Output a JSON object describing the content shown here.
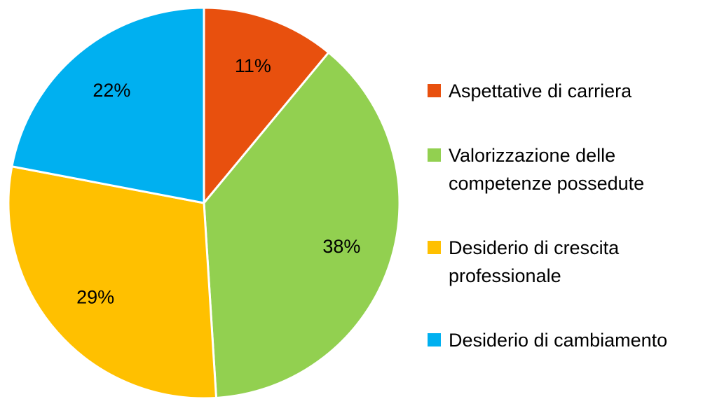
{
  "chart_data": {
    "type": "pie",
    "categories": [
      "Aspettative di carriera",
      "Valorizzazione delle competenze possedute",
      "Desiderio di crescita professionale",
      "Desiderio di cambiamento"
    ],
    "values": [
      11,
      38,
      29,
      22
    ],
    "value_labels": [
      "11%",
      "38%",
      "29%",
      "22%"
    ],
    "colors": [
      "#e8500e",
      "#92d050",
      "#ffc000",
      "#00b0f0"
    ],
    "legend": "right"
  }
}
